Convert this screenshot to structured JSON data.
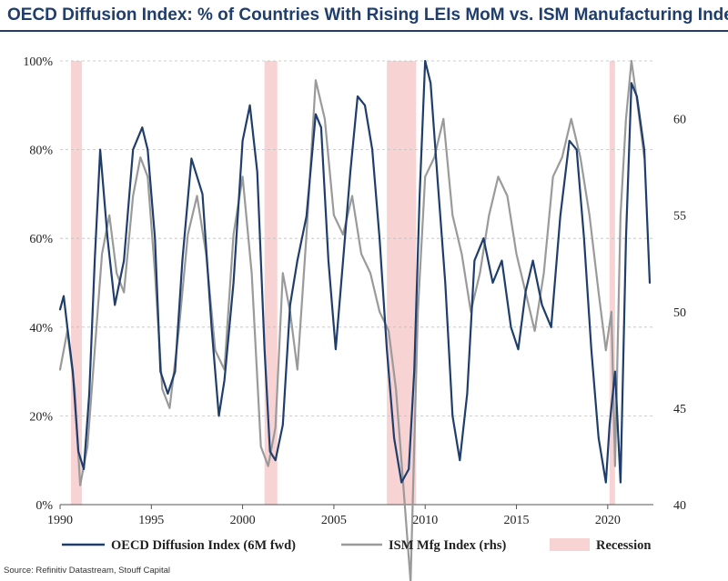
{
  "title": "OECD Diffusion Index: % of Countries With Rising LEIs MoM vs. ISM Manufacturing Index",
  "source": "Source: Refinitiv Datastream, Stouff Capital",
  "colors": {
    "oecd": "#1f3e6b",
    "ism": "#9a9a9a",
    "recession": "#f8d3d3",
    "grid": "#bfbfbf",
    "title": "#1f3e6b"
  },
  "chart_data": {
    "type": "line",
    "title": "OECD Diffusion Index: % of Countries With Rising LEIs MoM vs. ISM Manufacturing Index",
    "x_range": [
      1990,
      2022.5
    ],
    "x_ticks": [
      1990,
      1995,
      2000,
      2005,
      2010,
      2015,
      2020
    ],
    "x_tick_labels": [
      "1990",
      "1995",
      "2000",
      "2005",
      "2010",
      "2015",
      "2020"
    ],
    "y_left": {
      "range": [
        0,
        100
      ],
      "ticks": [
        0,
        20,
        40,
        60,
        80,
        100
      ],
      "tick_labels": [
        "0%",
        "20%",
        "40%",
        "60%",
        "80%",
        "100%"
      ]
    },
    "y_right": {
      "range": [
        40,
        63
      ],
      "ticks": [
        40,
        45,
        50,
        55,
        60
      ],
      "tick_labels": [
        "40",
        "45",
        "50",
        "55",
        "60"
      ]
    },
    "grid": "horizontal dashed",
    "legend_position": "bottom",
    "recessions": [
      [
        1990.6,
        1991.2
      ],
      [
        2001.2,
        2001.9
      ],
      [
        2007.9,
        2009.5
      ],
      [
        2020.1,
        2020.4
      ]
    ],
    "series": [
      {
        "name": "OECD Diffusion Index (6M fwd)",
        "axis": "left",
        "x": [
          1990.0,
          1990.2,
          1990.4,
          1990.7,
          1991.0,
          1991.3,
          1991.6,
          1991.9,
          1992.2,
          1992.6,
          1993.0,
          1993.5,
          1994.0,
          1994.5,
          1994.8,
          1995.2,
          1995.5,
          1995.9,
          1996.3,
          1996.7,
          1997.2,
          1997.8,
          1998.3,
          1998.7,
          1999.0,
          1999.5,
          2000.0,
          2000.4,
          2000.8,
          2001.2,
          2001.5,
          2001.8,
          2002.2,
          2002.6,
          2003.0,
          2003.5,
          2004.0,
          2004.3,
          2004.7,
          2005.1,
          2005.5,
          2005.9,
          2006.3,
          2006.7,
          2007.1,
          2007.5,
          2007.9,
          2008.3,
          2008.7,
          2009.1,
          2009.4,
          2009.7,
          2010.0,
          2010.3,
          2010.7,
          2011.1,
          2011.5,
          2011.9,
          2012.3,
          2012.7,
          2013.2,
          2013.7,
          2014.2,
          2014.7,
          2015.1,
          2015.5,
          2015.9,
          2016.4,
          2016.9,
          2017.4,
          2017.9,
          2018.3,
          2018.7,
          2019.1,
          2019.5,
          2019.9,
          2020.1,
          2020.4,
          2020.7,
          2021.0,
          2021.3,
          2021.6,
          2022.0,
          2022.3
        ],
        "y": [
          44,
          47,
          40,
          30,
          12,
          8,
          25,
          55,
          80,
          60,
          45,
          55,
          80,
          85,
          80,
          60,
          30,
          25,
          30,
          55,
          78,
          70,
          40,
          20,
          28,
          50,
          82,
          90,
          75,
          35,
          12,
          10,
          18,
          45,
          55,
          65,
          88,
          85,
          55,
          35,
          55,
          75,
          92,
          90,
          80,
          60,
          35,
          15,
          5,
          8,
          30,
          70,
          100,
          95,
          72,
          50,
          20,
          10,
          25,
          55,
          60,
          50,
          55,
          40,
          35,
          48,
          55,
          45,
          40,
          65,
          82,
          80,
          60,
          35,
          15,
          5,
          18,
          30,
          5,
          60,
          95,
          92,
          80,
          50
        ]
      },
      {
        "name": "ISM Mfg Index (rhs)",
        "axis": "right",
        "x": [
          1990.0,
          1990.4,
          1990.8,
          1991.1,
          1991.5,
          1991.9,
          1992.3,
          1992.7,
          1993.1,
          1993.5,
          1994.0,
          1994.4,
          1994.8,
          1995.2,
          1995.6,
          1996.0,
          1996.5,
          1997.0,
          1997.5,
          1998.0,
          1998.5,
          1999.0,
          1999.5,
          2000.0,
          2000.5,
          2001.0,
          2001.4,
          2001.8,
          2002.2,
          2002.6,
          2003.0,
          2003.5,
          2004.0,
          2004.5,
          2005.0,
          2005.5,
          2006.0,
          2006.5,
          2007.0,
          2007.5,
          2008.0,
          2008.4,
          2008.8,
          2009.2,
          2009.6,
          2010.0,
          2010.5,
          2011.0,
          2011.5,
          2012.0,
          2012.5,
          2013.0,
          2013.5,
          2014.0,
          2014.5,
          2015.0,
          2015.5,
          2016.0,
          2016.5,
          2017.0,
          2017.5,
          2018.0,
          2018.5,
          2019.0,
          2019.5,
          2019.9,
          2020.2,
          2020.4,
          2020.7,
          2021.0,
          2021.3,
          2021.6,
          2022.0
        ],
        "y": [
          47,
          49,
          46,
          41,
          43,
          48,
          53,
          55,
          52,
          51,
          56,
          58,
          57,
          52,
          46,
          45,
          49,
          54,
          56,
          53,
          48,
          47,
          54,
          57,
          52,
          43,
          42,
          44,
          52,
          50,
          47,
          54,
          62,
          60,
          55,
          54,
          56,
          53,
          52,
          50,
          49,
          46,
          41,
          36,
          50,
          57,
          58,
          60,
          55,
          53,
          50,
          52,
          55,
          57,
          56,
          53,
          51,
          49,
          52,
          57,
          58,
          60,
          58,
          55,
          51,
          48,
          50,
          42,
          55,
          60,
          63,
          61,
          58
        ]
      }
    ]
  },
  "legend": [
    {
      "key": "oecd",
      "label": "OECD Diffusion Index (6M fwd)"
    },
    {
      "key": "ism",
      "label": "ISM Mfg Index (rhs)"
    },
    {
      "key": "recession",
      "label": "Recession"
    }
  ]
}
